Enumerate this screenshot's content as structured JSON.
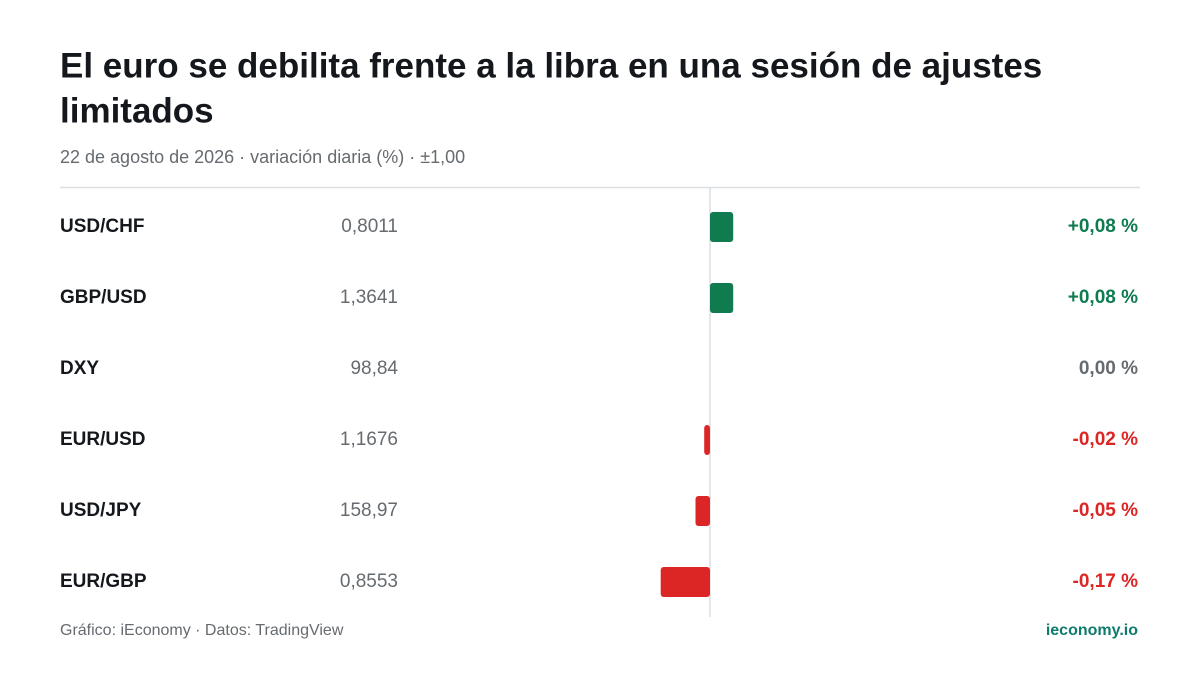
{
  "chart_data": {
    "type": "bar",
    "orientation": "horizontal",
    "title_lines": [
      "El euro se debilita frente a la libra en una sesión de ajustes",
      "limitados"
    ],
    "subtitle": "22 de agosto de 2026 · variación diaria (%) · ±1,00",
    "categories": [
      "USD/CHF",
      "GBP/USD",
      "DXY",
      "EUR/USD",
      "USD/JPY",
      "EUR/GBP"
    ],
    "prices": [
      "0,8011",
      "1,3641",
      "98,84",
      "1,1676",
      "158,97",
      "0,8553"
    ],
    "values": [
      0.08,
      0.08,
      0,
      -0.02,
      -0.05,
      -0.17
    ],
    "value_labels": [
      "+0,08 %",
      "+0,08 %",
      "0,00 %",
      "-0,02 %",
      "-0,05 %",
      "-0,17 %"
    ],
    "xlim": [
      -1,
      1
    ],
    "colors": {
      "positive": "#0f7b4f",
      "negative": "#dc2626",
      "zero": "#666b70"
    },
    "source": "Gráfico: iEconomy · Datos: TradingView",
    "brand": "ieconomy.io"
  }
}
